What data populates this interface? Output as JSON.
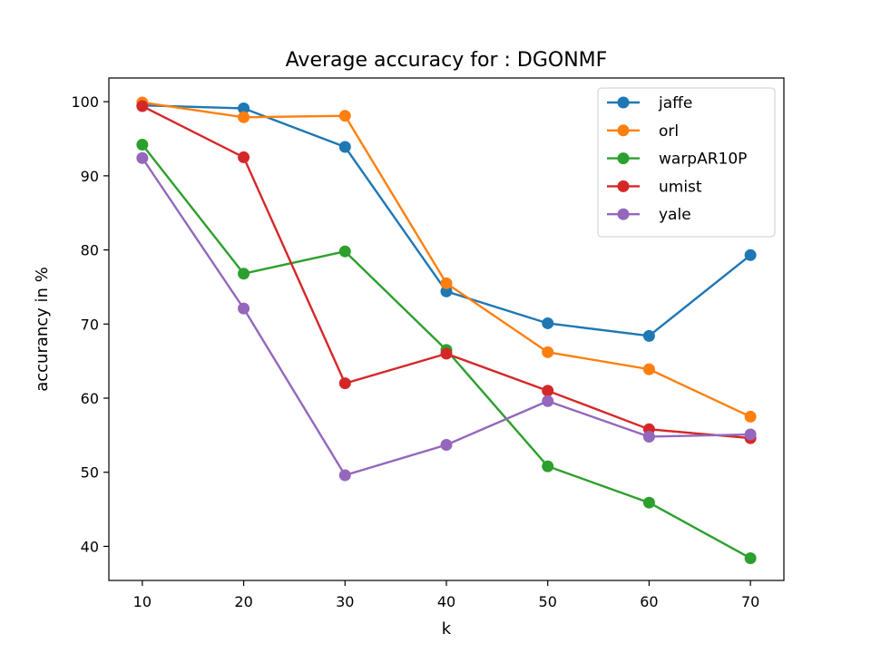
{
  "chart_data": {
    "type": "line",
    "title": "Average accuracy for : DGONMF",
    "xlabel": "k",
    "ylabel": "accurancy in %",
    "x": [
      10,
      20,
      30,
      40,
      50,
      60,
      70
    ],
    "xlim": [
      6.7,
      73.3
    ],
    "ylim": [
      35.4,
      103.2
    ],
    "xticks": [
      10,
      20,
      30,
      40,
      50,
      60,
      70
    ],
    "yticks": [
      40,
      50,
      60,
      70,
      80,
      90,
      100
    ],
    "grid": false,
    "legend_position": "top-right",
    "marker": "circle",
    "series": [
      {
        "name": "jaffe",
        "color": "#1f77b4",
        "values": [
          99.5,
          99.1,
          93.9,
          74.4,
          70.1,
          68.4,
          79.3
        ]
      },
      {
        "name": "orl",
        "color": "#ff7f0e",
        "values": [
          99.9,
          97.9,
          98.1,
          75.5,
          66.2,
          63.9,
          57.5
        ]
      },
      {
        "name": "warpAR10P",
        "color": "#2ca02c",
        "values": [
          94.2,
          76.8,
          79.8,
          66.5,
          50.8,
          45.9,
          38.4
        ]
      },
      {
        "name": "umist",
        "color": "#d62728",
        "values": [
          99.4,
          92.5,
          62.0,
          66.0,
          61.0,
          55.8,
          54.6
        ]
      },
      {
        "name": "yale",
        "color": "#9467bd",
        "values": [
          92.4,
          72.1,
          49.6,
          53.7,
          59.6,
          54.8,
          55.1
        ]
      }
    ]
  }
}
